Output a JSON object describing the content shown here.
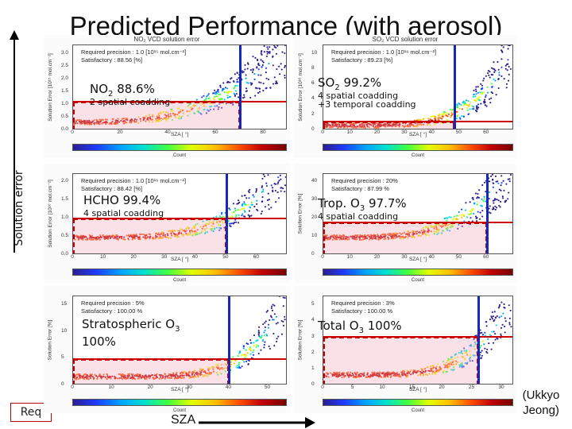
{
  "slide": {
    "title": "Predicted Performance (with aerosol)",
    "ylabel": "Solution error",
    "xlabel": "SZA",
    "credit_line1": "(Ukkyo",
    "credit_line2": "Jeong)",
    "req_label": "Req"
  },
  "colorbar_label": "Count",
  "colors": {
    "threshold": "#cc0000",
    "sza_limit": "#1628b8",
    "box": "#c00000"
  },
  "chart_data": [
    {
      "type": "scatter",
      "title": "NO₂ VCD solution error",
      "info_line1": "Required precision : 1.0 [10¹⁵ mol.cm⁻²]",
      "info_line2": "Satisfactory : 88.56 [%]",
      "ylabel": "Solution Error [10¹⁵ mol.cm⁻²]",
      "xlabel": "SZA [ °]",
      "xticks": [
        "0",
        "20",
        "40",
        "60",
        "80"
      ],
      "yticks": [
        "0.0",
        "0.5",
        "1.0",
        "1.5",
        "2.0",
        "2.5",
        "3.0"
      ],
      "xlim": [
        0,
        90
      ],
      "ylim": [
        0,
        3.0
      ],
      "threshold": 1.0,
      "sza_limit": 70,
      "label": "NO",
      "label_sub": "2",
      "label_value": "88.6%",
      "label_note": "2 spatial coadding",
      "label_note2": ""
    },
    {
      "type": "scatter",
      "title": "SO₂ VCD solution error",
      "info_line1": "Required precision : 1.0 [10¹⁶ mol.cm⁻²]",
      "info_line2": "Satisfactory : 89.23 [%]",
      "ylabel": "Solution Error [10¹⁶ mol.cm⁻²]",
      "xlabel": "SZA [ °]",
      "xticks": [
        "0",
        "10",
        "20",
        "30",
        "40",
        "50",
        "60"
      ],
      "yticks": [
        "0",
        "2",
        "4",
        "6",
        "8",
        "10"
      ],
      "xlim": [
        0,
        70
      ],
      "ylim": [
        0,
        10
      ],
      "threshold": 1.0,
      "sza_limit": 48,
      "label": "SO",
      "label_sub": "2",
      "label_value": "99.2%",
      "label_note": "4 spatial coadding",
      "label_note2": "+3 temporal coadding"
    },
    {
      "type": "scatter",
      "title": "",
      "info_line1": "Required precision : 1.0 [10¹⁶ mol.cm⁻²]",
      "info_line2": "Satisfactory : 88.42 [%]",
      "ylabel": "Solution Error [10¹⁶ mol.cm⁻²]",
      "xlabel": "SZA [ °]",
      "xticks": [
        "0",
        "10",
        "20",
        "30",
        "40",
        "50",
        "60"
      ],
      "yticks": [
        "0.0",
        "0.5",
        "1.0",
        "1.5",
        "2.0"
      ],
      "xlim": [
        0,
        70
      ],
      "ylim": [
        0,
        2.2
      ],
      "threshold": 1.0,
      "sza_limit": 50,
      "label": "HCHO",
      "label_sub": "",
      "label_value": "99.4%",
      "label_note": "4 spatial coadding",
      "label_note2": ""
    },
    {
      "type": "scatter",
      "title": "",
      "info_line1": "Required precision : 20%",
      "info_line2": "Satisfactory : 87.99 %",
      "ylabel": "Solution Error [%]",
      "xlabel": "SZA [ °]",
      "xticks": [
        "0",
        "10",
        "20",
        "30",
        "40",
        "50",
        "60"
      ],
      "yticks": [
        "0",
        "10",
        "20",
        "30",
        "40"
      ],
      "xlim": [
        0,
        70
      ],
      "ylim": [
        0,
        50
      ],
      "threshold": 20,
      "sza_limit": 60,
      "label": "Trop. O",
      "label_sub": "3",
      "label_value": "97.7%",
      "label_note": "4 spatial coadding",
      "label_note2": ""
    },
    {
      "type": "scatter",
      "title": "",
      "info_line1": "Required precision : 5%",
      "info_line2": "Satisfactory : 100.00 %",
      "ylabel": "Solution Error [%]",
      "xlabel": "SZA [ °]",
      "xticks": [
        "0",
        "10",
        "20",
        "30",
        "40",
        "50"
      ],
      "yticks": [
        "0",
        "5",
        "10",
        "15"
      ],
      "xlim": [
        0,
        55
      ],
      "ylim": [
        0,
        17
      ],
      "threshold": 5,
      "sza_limit": 40,
      "label": "Stratospheric O",
      "label_sub": "3",
      "label_value": "100%",
      "label_note": "",
      "label_note2": ""
    },
    {
      "type": "scatter",
      "title": "",
      "info_line1": "Required precision : 3%",
      "info_line2": "Satisfactory : 100.00 %",
      "ylabel": "Solution Error [%]",
      "xlabel": "SZA [ °]",
      "xticks": [
        "0",
        "5",
        "10",
        "15",
        "20",
        "25",
        "30"
      ],
      "yticks": [
        "0",
        "1",
        "2",
        "3",
        "4",
        "5"
      ],
      "xlim": [
        0,
        32
      ],
      "ylim": [
        0,
        5.5
      ],
      "threshold": 3,
      "sza_limit": 26,
      "label": "Total O",
      "label_sub": "3",
      "label_value": "100%",
      "label_note": "",
      "label_note2": ""
    }
  ]
}
